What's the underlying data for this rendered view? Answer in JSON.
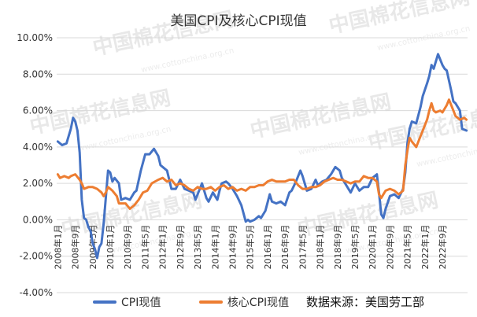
{
  "watermark": {
    "text": "中国棉花信息网",
    "url_text": "www.cottonchina.org.cn"
  },
  "source_note": "数据来源：美国劳工部",
  "chart_data": {
    "type": "line",
    "title": "美国CPI及核心CPI现值",
    "xlabel": "",
    "ylabel": "",
    "ylim": [
      -4,
      10
    ],
    "y_ticks": [
      -4,
      -2,
      0,
      2,
      4,
      6,
      8,
      10
    ],
    "y_tick_labels": [
      "-4.00%",
      "-2.00%",
      "0.00%",
      "2.00%",
      "4.00%",
      "6.00%",
      "8.00%",
      "10.00%"
    ],
    "x_tick_labels": [
      "2008年1月",
      "2008年9月",
      "2009年5月",
      "2010年1月",
      "2010年9月",
      "2011年5月",
      "2012年1月",
      "2012年9月",
      "2013年5月",
      "2014年1月",
      "2014年9月",
      "2015年5月",
      "2016年1月",
      "2016年9月",
      "2017年5月",
      "2018年1月",
      "2018年9月",
      "2019年5月",
      "2020年1月",
      "2020年9月",
      "2021年5月",
      "2022年1月",
      "2022年9月"
    ],
    "x_tick_step_months": 8,
    "n_months": 188,
    "grid": true,
    "legend_position": "bottom",
    "series": [
      {
        "name": "CPI现值",
        "color": "#4472C4",
        "keypoints": [
          [
            0,
            4.3
          ],
          [
            2,
            4.1
          ],
          [
            4,
            4.2
          ],
          [
            6,
            5.0
          ],
          [
            7,
            5.6
          ],
          [
            8,
            5.4
          ],
          [
            9,
            4.9
          ],
          [
            10,
            3.7
          ],
          [
            11,
            1.1
          ],
          [
            12,
            0.1
          ],
          [
            13,
            0.0
          ],
          [
            14,
            -0.4
          ],
          [
            15,
            -0.6
          ],
          [
            16,
            -1.3
          ],
          [
            17,
            -1.6
          ],
          [
            18,
            -2.1
          ],
          [
            19,
            -1.5
          ],
          [
            20,
            -1.3
          ],
          [
            21,
            -0.2
          ],
          [
            23,
            2.7
          ],
          [
            24,
            2.6
          ],
          [
            25,
            2.1
          ],
          [
            26,
            2.3
          ],
          [
            28,
            2.0
          ],
          [
            29,
            1.1
          ],
          [
            31,
            1.2
          ],
          [
            33,
            1.1
          ],
          [
            35,
            1.5
          ],
          [
            36,
            1.6
          ],
          [
            38,
            2.7
          ],
          [
            40,
            3.6
          ],
          [
            42,
            3.6
          ],
          [
            44,
            3.9
          ],
          [
            46,
            3.5
          ],
          [
            47,
            3.0
          ],
          [
            48,
            2.9
          ],
          [
            50,
            2.7
          ],
          [
            52,
            1.7
          ],
          [
            54,
            1.7
          ],
          [
            56,
            2.2
          ],
          [
            58,
            1.7
          ],
          [
            60,
            1.6
          ],
          [
            62,
            1.5
          ],
          [
            63,
            1.1
          ],
          [
            64,
            1.4
          ],
          [
            66,
            2.0
          ],
          [
            68,
            1.2
          ],
          [
            69,
            1.0
          ],
          [
            71,
            1.5
          ],
          [
            73,
            1.1
          ],
          [
            74,
            1.6
          ],
          [
            75,
            2.0
          ],
          [
            77,
            2.1
          ],
          [
            78,
            2.0
          ],
          [
            80,
            1.7
          ],
          [
            82,
            1.3
          ],
          [
            84,
            0.8
          ],
          [
            86,
            -0.1
          ],
          [
            87,
            0.0
          ],
          [
            88,
            -0.1
          ],
          [
            90,
            0.0
          ],
          [
            92,
            0.2
          ],
          [
            93,
            0.1
          ],
          [
            95,
            0.5
          ],
          [
            97,
            1.4
          ],
          [
            98,
            1.0
          ],
          [
            100,
            0.9
          ],
          [
            102,
            1.0
          ],
          [
            104,
            0.8
          ],
          [
            106,
            1.5
          ],
          [
            107,
            1.6
          ],
          [
            109,
            2.1
          ],
          [
            111,
            2.7
          ],
          [
            112,
            2.4
          ],
          [
            114,
            1.6
          ],
          [
            116,
            1.7
          ],
          [
            118,
            2.2
          ],
          [
            119,
            1.9
          ],
          [
            121,
            2.1
          ],
          [
            123,
            2.2
          ],
          [
            125,
            2.5
          ],
          [
            127,
            2.9
          ],
          [
            129,
            2.7
          ],
          [
            130,
            2.3
          ],
          [
            132,
            1.9
          ],
          [
            134,
            1.5
          ],
          [
            136,
            2.0
          ],
          [
            138,
            1.6
          ],
          [
            140,
            1.8
          ],
          [
            142,
            1.8
          ],
          [
            144,
            2.3
          ],
          [
            146,
            2.5
          ],
          [
            147,
            1.5
          ],
          [
            148,
            0.3
          ],
          [
            149,
            0.1
          ],
          [
            150,
            0.6
          ],
          [
            152,
            1.3
          ],
          [
            154,
            1.4
          ],
          [
            156,
            1.2
          ],
          [
            158,
            1.7
          ],
          [
            159,
            2.6
          ],
          [
            160,
            4.2
          ],
          [
            161,
            5.0
          ],
          [
            162,
            5.4
          ],
          [
            164,
            5.3
          ],
          [
            166,
            6.2
          ],
          [
            167,
            6.8
          ],
          [
            169,
            7.5
          ],
          [
            170,
            7.9
          ],
          [
            171,
            8.5
          ],
          [
            172,
            8.3
          ],
          [
            174,
            9.1
          ],
          [
            176,
            8.5
          ],
          [
            177,
            8.3
          ],
          [
            178,
            8.2
          ],
          [
            180,
            7.1
          ],
          [
            181,
            6.5
          ],
          [
            182,
            6.4
          ],
          [
            184,
            6.0
          ],
          [
            185,
            5.0
          ],
          [
            187,
            4.9
          ]
        ]
      },
      {
        "name": "核心CPI现值",
        "color": "#ED7D31",
        "keypoints": [
          [
            0,
            2.5
          ],
          [
            1,
            2.3
          ],
          [
            3,
            2.4
          ],
          [
            5,
            2.3
          ],
          [
            6,
            2.4
          ],
          [
            8,
            2.5
          ],
          [
            10,
            2.2
          ],
          [
            11,
            2.0
          ],
          [
            12,
            1.7
          ],
          [
            14,
            1.8
          ],
          [
            16,
            1.8
          ],
          [
            18,
            1.7
          ],
          [
            20,
            1.5
          ],
          [
            21,
            1.3
          ],
          [
            22,
            1.5
          ],
          [
            23,
            1.8
          ],
          [
            25,
            1.6
          ],
          [
            27,
            1.3
          ],
          [
            28,
            0.9
          ],
          [
            31,
            0.9
          ],
          [
            33,
            0.6
          ],
          [
            35,
            0.8
          ],
          [
            37,
            1.1
          ],
          [
            39,
            1.5
          ],
          [
            41,
            1.6
          ],
          [
            43,
            2.0
          ],
          [
            46,
            2.2
          ],
          [
            48,
            2.3
          ],
          [
            50,
            2.1
          ],
          [
            52,
            2.2
          ],
          [
            54,
            1.9
          ],
          [
            56,
            2.0
          ],
          [
            58,
            1.9
          ],
          [
            60,
            1.7
          ],
          [
            62,
            1.6
          ],
          [
            64,
            1.8
          ],
          [
            66,
            1.7
          ],
          [
            68,
            1.7
          ],
          [
            70,
            1.8
          ],
          [
            72,
            1.6
          ],
          [
            74,
            1.8
          ],
          [
            76,
            1.9
          ],
          [
            78,
            1.7
          ],
          [
            80,
            1.8
          ],
          [
            82,
            1.6
          ],
          [
            84,
            1.7
          ],
          [
            86,
            1.6
          ],
          [
            88,
            1.8
          ],
          [
            90,
            1.8
          ],
          [
            92,
            1.9
          ],
          [
            94,
            1.9
          ],
          [
            96,
            2.1
          ],
          [
            98,
            2.2
          ],
          [
            100,
            2.1
          ],
          [
            102,
            2.1
          ],
          [
            104,
            2.1
          ],
          [
            106,
            2.2
          ],
          [
            108,
            2.2
          ],
          [
            110,
            1.9
          ],
          [
            112,
            1.7
          ],
          [
            114,
            1.7
          ],
          [
            116,
            1.8
          ],
          [
            118,
            1.8
          ],
          [
            120,
            1.9
          ],
          [
            122,
            2.1
          ],
          [
            124,
            2.2
          ],
          [
            126,
            2.3
          ],
          [
            128,
            2.2
          ],
          [
            130,
            2.2
          ],
          [
            132,
            2.1
          ],
          [
            134,
            2.0
          ],
          [
            136,
            2.1
          ],
          [
            138,
            2.1
          ],
          [
            140,
            2.4
          ],
          [
            142,
            2.3
          ],
          [
            144,
            2.3
          ],
          [
            146,
            2.1
          ],
          [
            147,
            1.4
          ],
          [
            148,
            1.2
          ],
          [
            150,
            1.6
          ],
          [
            152,
            1.7
          ],
          [
            154,
            1.6
          ],
          [
            156,
            1.4
          ],
          [
            158,
            1.6
          ],
          [
            159,
            3.0
          ],
          [
            160,
            3.8
          ],
          [
            161,
            4.5
          ],
          [
            162,
            4.3
          ],
          [
            164,
            4.0
          ],
          [
            166,
            4.6
          ],
          [
            167,
            4.9
          ],
          [
            169,
            5.5
          ],
          [
            170,
            6.0
          ],
          [
            171,
            6.4
          ],
          [
            172,
            6.0
          ],
          [
            173,
            5.9
          ],
          [
            175,
            6.0
          ],
          [
            176,
            5.9
          ],
          [
            178,
            6.3
          ],
          [
            179,
            6.6
          ],
          [
            180,
            6.3
          ],
          [
            181,
            6.0
          ],
          [
            182,
            5.7
          ],
          [
            184,
            5.5
          ],
          [
            186,
            5.6
          ],
          [
            187,
            5.5
          ]
        ]
      }
    ]
  }
}
